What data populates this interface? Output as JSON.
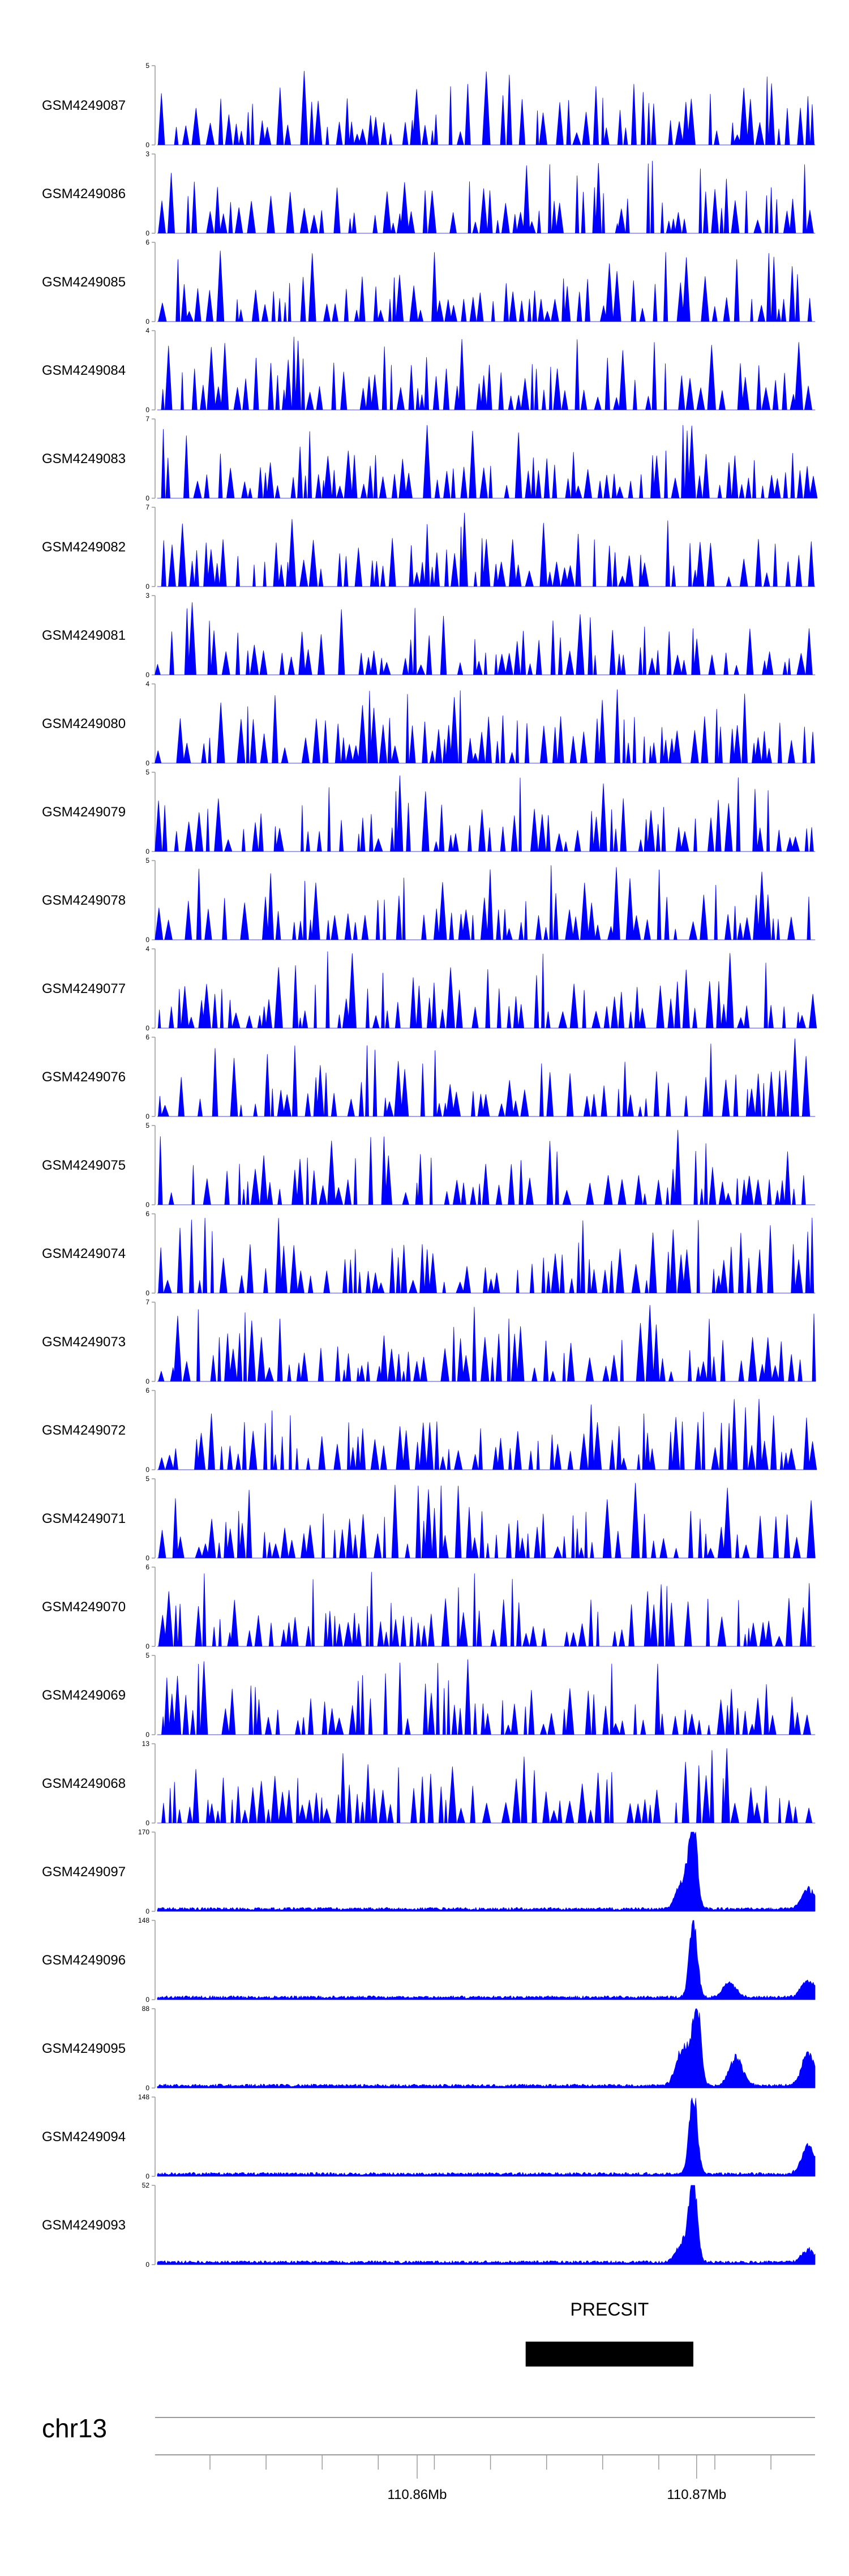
{
  "chart_data": {
    "type": "area",
    "title": "",
    "fill_color": "#0000ff",
    "gridlines": false,
    "tracks": [
      {
        "name": "GSM4249087",
        "ymax": "5",
        "ymin": "0",
        "style": "sparse",
        "peaks": [
          [
            0.83,
            1.0
          ],
          [
            0.82,
            0.8
          ]
        ]
      },
      {
        "name": "GSM4249086",
        "ymax": "3",
        "ymin": "0",
        "style": "sparse",
        "peaks": [
          [
            0.63,
            1.0
          ],
          [
            0.75,
            1.0
          ],
          [
            0.82,
            1.0
          ]
        ]
      },
      {
        "name": "GSM4249085",
        "ymax": "6",
        "ymin": "0",
        "style": "sparse",
        "peaks": [
          [
            0.81,
            1.0
          ],
          [
            0.79,
            0.6
          ],
          [
            0.98,
            0.45
          ]
        ]
      },
      {
        "name": "GSM4249084",
        "ymax": "4",
        "ymin": "0",
        "style": "sparse",
        "peaks": [
          [
            0.21,
            1.0
          ],
          [
            0.76,
            1.0
          ],
          [
            0.84,
            0.9
          ]
        ]
      },
      {
        "name": "GSM4249083",
        "ymax": "7",
        "ymin": "0",
        "style": "sparse",
        "peaks": [
          [
            0.81,
            1.0
          ],
          [
            0.75,
            0.6
          ]
        ]
      },
      {
        "name": "GSM4249082",
        "ymax": "7",
        "ymin": "0",
        "style": "sparse",
        "peaks": [
          [
            0.65,
            1.0
          ]
        ]
      },
      {
        "name": "GSM4249081",
        "ymax": "3",
        "ymin": "0",
        "style": "sparse",
        "peaks": [
          [
            0.05,
            1.0
          ],
          [
            0.65,
            1.0
          ],
          [
            0.08,
            0.7
          ]
        ]
      },
      {
        "name": "GSM4249080",
        "ymax": "4",
        "ymin": "0",
        "style": "sparse",
        "peaks": [
          [
            0.32,
            1.0
          ],
          [
            0.68,
            0.9
          ],
          [
            0.84,
            0.8
          ]
        ]
      },
      {
        "name": "GSM4249079",
        "ymax": "5",
        "ymin": "0",
        "style": "sparse",
        "peaks": [
          [
            0.37,
            1.0
          ],
          [
            0.86,
            0.85
          ]
        ]
      },
      {
        "name": "GSM4249078",
        "ymax": "5",
        "ymin": "0",
        "style": "sparse",
        "peaks": [
          [
            0.06,
            1.0
          ],
          [
            0.76,
            0.9
          ]
        ]
      },
      {
        "name": "GSM4249077",
        "ymax": "4",
        "ymin": "0",
        "style": "sparse",
        "peaks": [
          [
            0.26,
            1.0
          ],
          [
            0.57,
            0.85
          ],
          [
            0.8,
            0.85
          ]
        ]
      },
      {
        "name": "GSM4249076",
        "ymax": "6",
        "ymin": "0",
        "style": "sparse",
        "peaks": [
          [
            0.97,
            1.0
          ],
          [
            0.25,
            0.7
          ]
        ]
      },
      {
        "name": "GSM4249075",
        "ymax": "5",
        "ymin": "0",
        "style": "sparse",
        "peaks": [
          [
            0.32,
            1.0
          ],
          [
            0.34,
            1.0
          ],
          [
            0.6,
            0.9
          ]
        ]
      },
      {
        "name": "GSM4249074",
        "ymax": "6",
        "ymin": "0",
        "style": "sparse",
        "peaks": [
          [
            0.82,
            1.0
          ],
          [
            0.96,
            0.8
          ]
        ]
      },
      {
        "name": "GSM4249073",
        "ymax": "7",
        "ymin": "0",
        "style": "sparse",
        "peaks": [
          [
            0.07,
            1.0
          ],
          [
            0.75,
            1.0
          ]
        ]
      },
      {
        "name": "GSM4249072",
        "ymax": "6",
        "ymin": "0",
        "style": "sparse",
        "peaks": [
          [
            0.81,
            1.0
          ],
          [
            0.79,
            0.7
          ],
          [
            0.99,
            0.45
          ]
        ]
      },
      {
        "name": "GSM4249071",
        "ymax": "5",
        "ymin": "0",
        "style": "sparse",
        "peaks": [
          [
            0.02,
            1.0
          ],
          [
            0.82,
            0.6
          ]
        ]
      },
      {
        "name": "GSM4249070",
        "ymax": "6",
        "ymin": "0",
        "style": "sparse",
        "peaks": [
          [
            0.45,
            1.0
          ],
          [
            0.77,
            0.9
          ]
        ]
      },
      {
        "name": "GSM4249069",
        "ymax": "5",
        "ymin": "0",
        "style": "sparse",
        "peaks": [
          [
            0.34,
            1.0
          ],
          [
            0.31,
            0.8
          ]
        ]
      },
      {
        "name": "GSM4249068",
        "ymax": "13",
        "ymin": "0",
        "style": "sparse",
        "peaks": [
          [
            0.81,
            1.0
          ],
          [
            0.83,
            0.7
          ],
          [
            0.93,
            0.5
          ]
        ]
      },
      {
        "name": "GSM4249097",
        "ymax": "170",
        "ymin": "0",
        "style": "dense",
        "peaks": [
          [
            0.815,
            1.0
          ],
          [
            0.8,
            0.38
          ],
          [
            0.99,
            0.25
          ]
        ]
      },
      {
        "name": "GSM4249096",
        "ymax": "148",
        "ymin": "0",
        "style": "dense",
        "peaks": [
          [
            0.815,
            1.0
          ],
          [
            0.87,
            0.18
          ],
          [
            0.99,
            0.22
          ]
        ]
      },
      {
        "name": "GSM4249095",
        "ymax": "88",
        "ymin": "0",
        "style": "dense",
        "peaks": [
          [
            0.82,
            1.0
          ],
          [
            0.8,
            0.5
          ],
          [
            0.88,
            0.35
          ],
          [
            0.99,
            0.4
          ]
        ]
      },
      {
        "name": "GSM4249094",
        "ymax": "148",
        "ymin": "0",
        "style": "dense",
        "peaks": [
          [
            0.815,
            1.0
          ],
          [
            0.99,
            0.35
          ]
        ]
      },
      {
        "name": "GSM4249093",
        "ymax": "52",
        "ymin": "0",
        "style": "dense",
        "peaks": [
          [
            0.815,
            1.0
          ],
          [
            0.8,
            0.25
          ],
          [
            0.99,
            0.15
          ]
        ]
      }
    ],
    "gene": {
      "name": "PRECSIT",
      "start_frac": 0.56,
      "end_frac": 0.815
    },
    "chromosome": "chr13",
    "axis_ticks": [
      {
        "frac": 0.395,
        "label": "110.86Mb"
      },
      {
        "frac": 0.82,
        "label": "110.87Mb"
      }
    ]
  }
}
